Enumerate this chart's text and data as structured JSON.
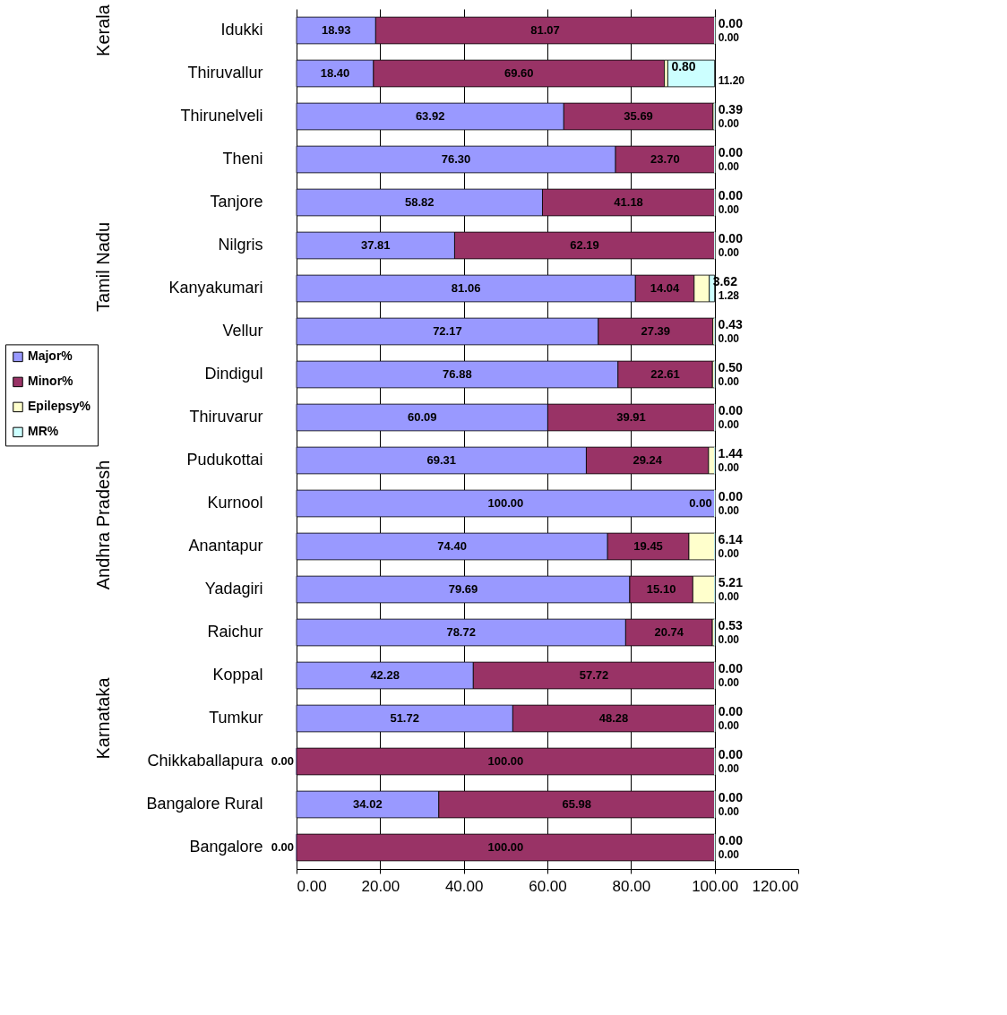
{
  "chart_data": {
    "type": "bar",
    "orientation": "horizontal",
    "stacked": true,
    "categories": [
      "Idukki",
      "Thiruvallur",
      "Thirunelveli",
      "Theni",
      "Tanjore",
      "Nilgris",
      "Kanyakumari",
      "Vellur",
      "Dindigul",
      "Thiruvarur",
      "Pudukottai",
      "Kurnool",
      "Anantapur",
      "Yadagiri",
      "Raichur",
      "Koppal",
      "Tumkur",
      "Chikkaballapura",
      "Bangalore Rural",
      "Bangalore"
    ],
    "series": [
      {
        "name": "Major%",
        "color": "#9999ff",
        "values": [
          18.93,
          18.4,
          63.92,
          76.3,
          58.82,
          37.81,
          81.06,
          72.17,
          76.88,
          60.09,
          69.31,
          100.0,
          74.4,
          79.69,
          78.72,
          42.28,
          51.72,
          0.0,
          34.02,
          0.0
        ],
        "value_labels": [
          "18.93",
          "18.40",
          "63.92",
          "76.30",
          "58.82",
          "37.81",
          "81.06",
          "72.17",
          "76.88",
          "60.09",
          "69.31",
          "100.00",
          "74.40",
          "79.69",
          "78.72",
          "42.28",
          "51.72",
          "0.00",
          "34.02",
          "0.00"
        ]
      },
      {
        "name": "Minor%",
        "color": "#993366",
        "values": [
          81.07,
          69.6,
          35.69,
          23.7,
          41.18,
          62.19,
          14.04,
          27.39,
          22.61,
          39.91,
          29.24,
          0.0,
          19.45,
          15.1,
          20.74,
          57.72,
          48.28,
          100.0,
          65.98,
          100.0
        ],
        "value_labels": [
          "81.07",
          "69.60",
          "35.69",
          "23.70",
          "41.18",
          "62.19",
          "14.04",
          "27.39",
          "22.61",
          "39.91",
          "29.24",
          "0.00",
          "19.45",
          "15.10",
          "20.74",
          "57.72",
          "48.28",
          "100.00",
          "65.98",
          "100.00"
        ]
      },
      {
        "name": "Epilepsy%",
        "color": "#ffffcc",
        "values": [
          0.0,
          0.8,
          0.39,
          0.0,
          0.0,
          0.0,
          3.62,
          0.43,
          0.5,
          0.0,
          1.44,
          0.0,
          6.14,
          5.21,
          0.53,
          0.0,
          0.0,
          0.0,
          0.0,
          0.0
        ],
        "value_labels": [
          "0.00",
          "0.80",
          "0.39",
          "0.00",
          "0.00",
          "0.00",
          "3.62",
          "0.43",
          "0.50",
          "0.00",
          "1.44",
          "0.00",
          "6.14",
          "5.21",
          "0.53",
          "0.00",
          "0.00",
          "0.00",
          "0.00",
          "0.00"
        ]
      },
      {
        "name": "MR%",
        "color": "#ccffff",
        "values": [
          0.0,
          11.2,
          0.0,
          0.0,
          0.0,
          0.0,
          1.28,
          0.0,
          0.0,
          0.0,
          0.0,
          0.0,
          0.0,
          0.0,
          0.0,
          0.0,
          0.0,
          0.0,
          0.0,
          0.0
        ],
        "value_labels": [
          "0.00",
          "11.20",
          "0.00",
          "0.00",
          "0.00",
          "0.00",
          "1.28",
          "0.00",
          "0.00",
          "0.00",
          "0.00",
          "0.00",
          "0.00",
          "0.00",
          "0.00",
          "0.00",
          "0.00",
          "0.00",
          "0.00",
          "0.00"
        ]
      }
    ],
    "xlim": [
      0,
      120
    ],
    "xticks": [
      {
        "value": 0,
        "label": "0.00"
      },
      {
        "value": 20,
        "label": "20.00"
      },
      {
        "value": 40,
        "label": "40.00"
      },
      {
        "value": 60,
        "label": "60.00"
      },
      {
        "value": 80,
        "label": "80.00"
      },
      {
        "value": 100,
        "label": "100.00"
      },
      {
        "value": 120,
        "label": "120.00"
      }
    ],
    "grid": "x",
    "legend": "left",
    "annotations": [
      "Kerala",
      "Tamil Nadu",
      "Andhra Pradesh",
      "Karnataka"
    ]
  }
}
